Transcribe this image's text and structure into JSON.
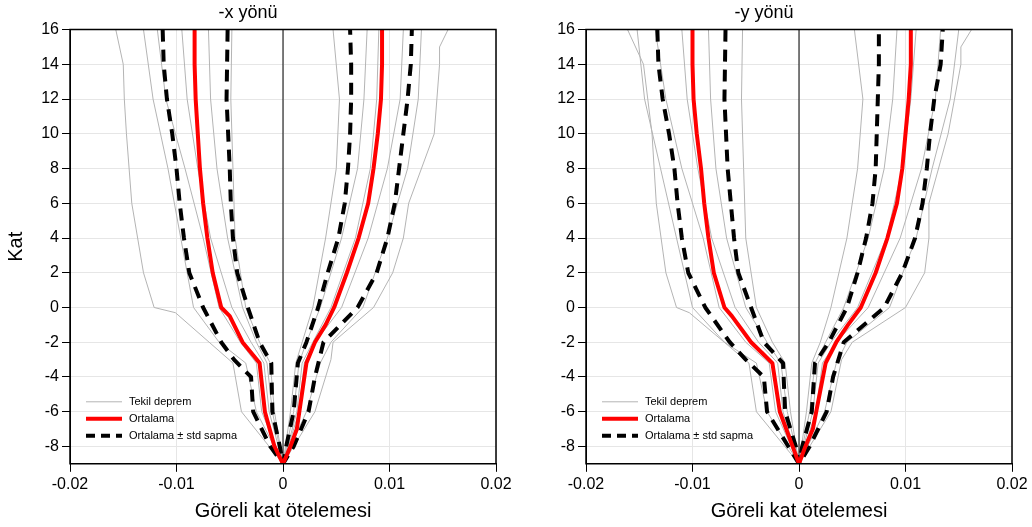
{
  "chart_data": [
    {
      "type": "line",
      "title": "-x yönü",
      "xlabel": "Göreli kat ötelemesi",
      "ylabel": "Kat",
      "xlim": [
        -0.02,
        0.02
      ],
      "xticks": [
        -0.02,
        -0.01,
        0,
        0.01,
        0.02
      ],
      "ylim": [
        -9,
        16
      ],
      "yticks": [
        -8,
        -6,
        -4,
        -2,
        0,
        2,
        4,
        6,
        8,
        10,
        12,
        14,
        16
      ],
      "grid": true,
      "legend": "bottom left",
      "line_style": "solid",
      "marker": "none",
      "ref_lines": [
        {
          "axis": "x",
          "value": 0,
          "color": "#000000"
        }
      ],
      "series": [
        {
          "name": "Tekil deprem",
          "color": "#b4b4b4",
          "x": [
            -0.0157,
            -0.015,
            -0.0149,
            -0.0147,
            -0.0142,
            -0.0131,
            -0.0121,
            -0.0101,
            -0.0047,
            -0.0039,
            0,
            0.003,
            0.0045,
            0.0047,
            0.0085,
            0.0103,
            0.0113,
            0.0118,
            0.0142,
            0.0147,
            0.0147,
            0.0155
          ],
          "values": [
            16,
            14,
            12,
            10,
            6,
            2,
            0,
            -0.3,
            -3.2,
            -6,
            -9,
            -6,
            -3,
            -2,
            0,
            2,
            4,
            6,
            10,
            14,
            15,
            16
          ]
        },
        {
          "color": "#b4b4b4",
          "x": [
            -0.0131,
            -0.0122,
            -0.0108,
            -0.0096,
            -0.0084,
            -0.006,
            -0.0035,
            -0.0025,
            0,
            0.0022,
            0.0035,
            0.0045,
            0.0075,
            0.0098,
            0.0117,
            0.0127,
            0.013
          ],
          "values": [
            16,
            12,
            8,
            4,
            0,
            -2,
            -3.2,
            -6,
            -9,
            -6,
            -3.2,
            -2,
            0,
            4,
            8,
            12,
            16
          ]
        },
        {
          "color": "#b4b4b4",
          "x": [
            -0.0118,
            -0.011,
            -0.0092,
            -0.0075,
            -0.006,
            -0.004,
            -0.0025,
            -0.002,
            0,
            0.0015,
            0.002,
            0.003,
            0.0055,
            0.008,
            0.0098,
            0.011,
            0.0113
          ],
          "values": [
            16,
            12,
            8,
            4,
            0,
            -2,
            -3.2,
            -6,
            -9,
            -6,
            -3.2,
            -2,
            0,
            4,
            8,
            12,
            16
          ]
        },
        {
          "color": "#b4b4b4",
          "x": [
            -0.0095,
            -0.009,
            -0.008,
            -0.0068,
            -0.0048,
            -0.003,
            -0.0018,
            -0.0013,
            0,
            0.0013,
            0.0018,
            0.0028,
            0.0045,
            0.0068,
            0.0082,
            0.0088,
            0.009
          ],
          "values": [
            16,
            12,
            8,
            4,
            0,
            -2,
            -3.2,
            -6,
            -9,
            -6,
            -3.2,
            -2,
            0,
            4,
            8,
            12,
            16
          ]
        },
        {
          "color": "#b4b4b4",
          "x": [
            -0.007,
            -0.0068,
            -0.0062,
            -0.0052,
            -0.0038,
            -0.0025,
            -0.0015,
            -0.001,
            0,
            0.001,
            0.0015,
            0.0022,
            0.0035,
            0.0055,
            0.007,
            0.0076,
            0.0079
          ],
          "values": [
            16,
            12,
            8,
            4,
            0,
            -2,
            -3.2,
            -6,
            -9,
            -6,
            -3.2,
            -2,
            0,
            4,
            8,
            12,
            16
          ]
        },
        {
          "color": "#b4b4b4",
          "x": [
            -0.0048,
            -0.0049,
            -0.0047,
            -0.0045,
            -0.0035,
            -0.0022,
            -0.0012,
            -0.0008,
            0,
            0.0007,
            0.0012,
            0.0018,
            0.0028,
            0.004,
            0.005,
            0.0053,
            0.0047
          ],
          "values": [
            16,
            12,
            8,
            4,
            0,
            -2,
            -3.2,
            -6,
            -9,
            -6,
            -3.2,
            -2,
            0,
            4,
            8,
            12,
            16
          ]
        },
        {
          "name": "Ortalama",
          "color": "#ff0000",
          "x": [
            -0.0083,
            -0.0083,
            -0.0082,
            -0.008,
            -0.0078,
            -0.0075,
            -0.0071,
            -0.0066,
            -0.0058,
            -0.005,
            -0.0038,
            -0.0022,
            -0.0017,
            -0.0008,
            0,
            0.0007,
            0.0013,
            0.0022,
            0.003,
            0.004,
            0.0048,
            0.006,
            0.0071,
            0.008,
            0.0085,
            0.0089,
            0.0092,
            0.0093,
            0.0093
          ],
          "values": [
            16,
            14,
            12,
            10,
            8,
            6,
            4,
            2,
            0,
            -0.5,
            -2,
            -3.2,
            -6,
            -8,
            -9,
            -8,
            -7,
            -3.2,
            -2,
            -1,
            0,
            2,
            4,
            6,
            8,
            10,
            12,
            14,
            16
          ]
        },
        {
          "name": "Ortalama ± std sapma",
          "color": "#000000",
          "line_style": "dashed",
          "x": [
            -0.0113,
            -0.0112,
            -0.0109,
            -0.0104,
            -0.01,
            -0.0097,
            -0.0093,
            -0.0088,
            -0.0075,
            -0.0058,
            -0.0046,
            -0.003,
            -0.0028,
            -0.0012,
            0,
            0.001,
            0.0024,
            0.003,
            0.0038,
            0.007,
            0.0088,
            0.0098,
            0.0105,
            0.0109,
            0.0113,
            0.0117,
            0.012,
            0.0121
          ],
          "values": [
            16,
            14,
            12,
            10,
            8,
            6,
            4,
            2,
            0,
            -2,
            -3,
            -4,
            -6,
            -8,
            -9,
            -8,
            -6,
            -4,
            -2,
            0,
            2,
            4,
            6,
            8,
            10,
            12,
            14,
            16
          ]
        },
        {
          "color": "#000000",
          "line_style": "dashed",
          "x": [
            -0.0052,
            -0.0053,
            -0.005,
            -0.0049,
            -0.0047,
            -0.0043,
            -0.0033,
            -0.0022,
            -0.0011,
            -0.001,
            -0.0003,
            0,
            0.0003,
            0.001,
            0.0014,
            0.0022,
            0.0033,
            0.0042,
            0.0052,
            0.0058,
            0.0061,
            0.0063,
            0.0064,
            0.0064,
            0.0063
          ],
          "values": [
            16,
            12,
            8,
            6,
            4,
            2,
            0,
            -2,
            -3.2,
            -6,
            -8,
            -9,
            -8,
            -6,
            -3.2,
            -2,
            0,
            2,
            4,
            6,
            8,
            10,
            12,
            14,
            16
          ]
        }
      ]
    },
    {
      "type": "line",
      "title": "-y yönü",
      "xlabel": "Göreli kat ötelemesi",
      "xlim": [
        -0.02,
        0.02
      ],
      "xticks": [
        -0.02,
        -0.01,
        0,
        0.01,
        0.02
      ],
      "ylim": [
        -9,
        16
      ],
      "yticks": [
        -8,
        -6,
        -4,
        -2,
        0,
        2,
        4,
        6,
        8,
        10,
        12,
        14,
        16
      ],
      "grid": true,
      "legend": "bottom left",
      "line_style": "solid",
      "marker": "none",
      "ref_lines": [
        {
          "axis": "x",
          "value": 0,
          "color": "#000000"
        }
      ],
      "series": [
        {
          "name": "Tekil deprem",
          "color": "#b4b4b4",
          "x": [
            -0.0161,
            -0.0146,
            -0.0138,
            -0.0134,
            -0.0125,
            -0.0115,
            -0.0103,
            -0.0047,
            -0.004,
            0,
            0.003,
            0.004,
            0.005,
            0.01,
            0.0118,
            0.0122,
            0.0122,
            0.014,
            0.0152,
            0.0152,
            0.0162
          ],
          "values": [
            16,
            14,
            10,
            6,
            2,
            0,
            -0.3,
            -3.2,
            -6,
            -9,
            -6,
            -3,
            -2,
            0,
            2,
            4,
            6,
            10,
            14,
            15,
            16
          ]
        },
        {
          "color": "#b4b4b4",
          "x": [
            -0.0152,
            -0.0145,
            -0.013,
            -0.0115,
            -0.01,
            -0.007,
            -0.004,
            -0.003,
            0,
            0.0024,
            0.0035,
            0.0045,
            0.0085,
            0.011,
            0.0125,
            0.0142,
            0.015
          ],
          "values": [
            16,
            12,
            8,
            4,
            0,
            -2,
            -3.2,
            -6,
            -9,
            -6,
            -3.2,
            -2,
            0,
            4,
            8,
            12,
            16
          ]
        },
        {
          "color": "#b4b4b4",
          "x": [
            -0.0135,
            -0.0125,
            -0.011,
            -0.009,
            -0.0075,
            -0.005,
            -0.0028,
            -0.0022,
            0,
            0.0016,
            0.0022,
            0.0035,
            0.0065,
            0.0095,
            0.0115,
            0.0128,
            0.0133
          ],
          "values": [
            16,
            12,
            8,
            4,
            0,
            -2,
            -3.2,
            -6,
            -9,
            -6,
            -3.2,
            -2,
            0,
            4,
            8,
            12,
            16
          ]
        },
        {
          "color": "#b4b4b4",
          "x": [
            -0.011,
            -0.0105,
            -0.0095,
            -0.0082,
            -0.006,
            -0.0038,
            -0.002,
            -0.0015,
            0,
            0.0013,
            0.0018,
            0.003,
            0.0055,
            0.0082,
            0.0097,
            0.0105,
            0.011
          ],
          "values": [
            16,
            12,
            8,
            4,
            0,
            -2,
            -3.2,
            -6,
            -9,
            -6,
            -3.2,
            -2,
            0,
            4,
            8,
            12,
            16
          ]
        },
        {
          "color": "#b4b4b4",
          "x": [
            -0.0085,
            -0.0083,
            -0.0078,
            -0.0068,
            -0.005,
            -0.003,
            -0.0017,
            -0.0011,
            0,
            0.001,
            0.0015,
            0.0025,
            0.0042,
            0.0065,
            0.008,
            0.0088,
            0.0092
          ],
          "values": [
            16,
            12,
            8,
            4,
            0,
            -2,
            -3.2,
            -6,
            -9,
            -6,
            -3.2,
            -2,
            0,
            4,
            8,
            12,
            16
          ]
        },
        {
          "color": "#b4b4b4",
          "x": [
            -0.0053,
            -0.0054,
            -0.0052,
            -0.005,
            -0.004,
            -0.0025,
            -0.0013,
            -0.0008,
            0,
            0.0007,
            0.0012,
            0.002,
            0.003,
            0.0045,
            0.0055,
            0.006,
            0.0052
          ],
          "values": [
            16,
            12,
            8,
            4,
            0,
            -2,
            -3.2,
            -6,
            -9,
            -6,
            -3.2,
            -2,
            0,
            4,
            8,
            12,
            16
          ]
        },
        {
          "name": "Ortalama",
          "color": "#ff0000",
          "x": [
            -0.01,
            -0.01,
            -0.0099,
            -0.0096,
            -0.0092,
            -0.0089,
            -0.0085,
            -0.008,
            -0.007,
            -0.0063,
            -0.0045,
            -0.0025,
            -0.0018,
            -0.0006,
            0,
            0.0006,
            0.0013,
            0.0025,
            0.0035,
            0.0046,
            0.0058,
            0.0072,
            0.0083,
            0.0092,
            0.0097,
            0.01,
            0.0103,
            0.0105,
            0.0105
          ],
          "values": [
            16,
            14,
            12,
            10,
            8,
            6,
            4,
            2,
            0,
            -0.5,
            -2,
            -3.2,
            -6,
            -8,
            -9,
            -8,
            -7,
            -3.2,
            -2,
            -1,
            0,
            2,
            4,
            6,
            8,
            10,
            12,
            14,
            16
          ]
        },
        {
          "name": "Ortalama ± std sapma",
          "color": "#000000",
          "line_style": "dashed",
          "x": [
            -0.0133,
            -0.0132,
            -0.0128,
            -0.0122,
            -0.0117,
            -0.0114,
            -0.011,
            -0.0104,
            -0.0088,
            -0.0065,
            -0.005,
            -0.0033,
            -0.003,
            -0.001,
            0,
            0.001,
            0.0026,
            0.0032,
            0.0042,
            0.008,
            0.0097,
            0.0109,
            0.0116,
            0.012,
            0.0123,
            0.0127,
            0.0133,
            0.0135
          ],
          "values": [
            16,
            14,
            12,
            10,
            8,
            6,
            4,
            2,
            0,
            -2,
            -3,
            -4,
            -6,
            -8,
            -9,
            -8,
            -6,
            -4,
            -2,
            0,
            2,
            4,
            6,
            8,
            10,
            12,
            14,
            16
          ]
        },
        {
          "color": "#000000",
          "line_style": "dashed",
          "x": [
            -0.0069,
            -0.007,
            -0.0067,
            -0.0064,
            -0.0061,
            -0.0057,
            -0.0045,
            -0.0033,
            -0.0015,
            -0.0013,
            -0.0003,
            0,
            0.0003,
            0.0012,
            0.0015,
            0.0028,
            0.0045,
            0.0055,
            0.0063,
            0.0069,
            0.0072,
            0.0073,
            0.0074,
            0.0075,
            0.0075
          ],
          "values": [
            16,
            12,
            8,
            6,
            4,
            2,
            0,
            -2,
            -3.2,
            -6,
            -8,
            -9,
            -8,
            -6,
            -3.2,
            -2,
            0,
            2,
            4,
            6,
            8,
            10,
            12,
            14,
            16
          ]
        }
      ]
    }
  ]
}
